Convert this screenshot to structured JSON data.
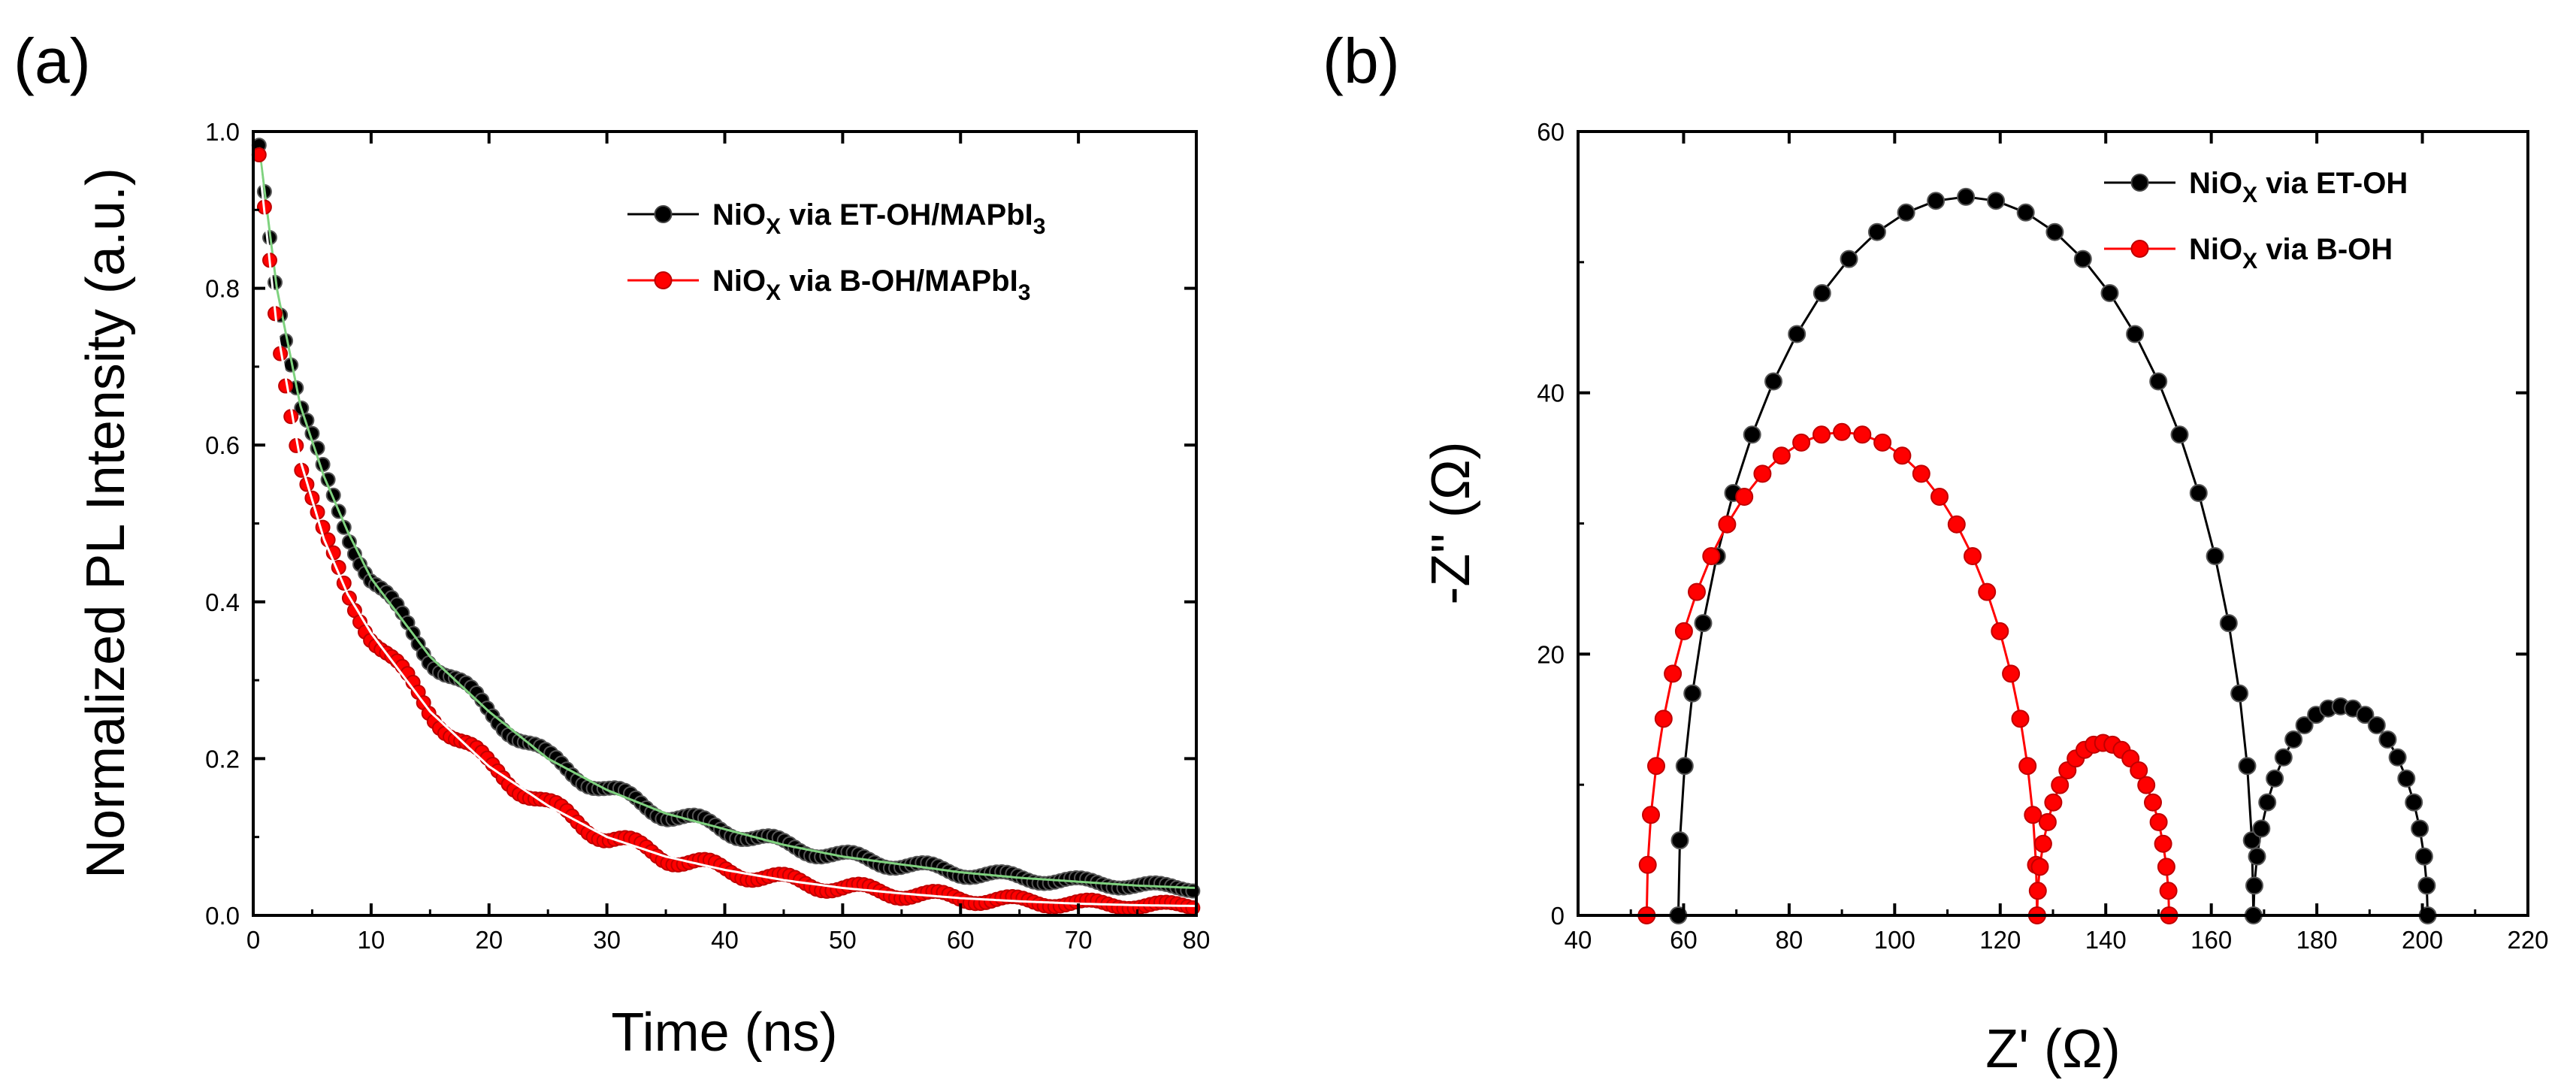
{
  "panels": [
    {
      "label": "(a)",
      "chart_data": {
        "type": "scatter",
        "xlabel": "Time (ns)",
        "ylabel": "Normalized PL Intensity (a.u.)",
        "xlim": [
          0,
          80
        ],
        "ylim": [
          0,
          1.0
        ],
        "xticks": [
          0,
          10,
          20,
          30,
          40,
          50,
          60,
          70,
          80
        ],
        "yticks": [
          0.0,
          0.2,
          0.4,
          0.6,
          0.8,
          1.0
        ],
        "xtick_labels": [
          "0",
          "10",
          "20",
          "30",
          "40",
          "50",
          "60",
          "70",
          "80"
        ],
        "ytick_labels": [
          "0.0",
          "0.2",
          "0.4",
          "0.6",
          "0.8",
          "1.0"
        ],
        "legend_position": "top-right",
        "series": [
          {
            "name": "NiOX via ET-OH/MAPbI3",
            "legend": {
              "main": "NiO",
              "sub": "X",
              "rest": " via ET-OH/MAPbI",
              "sub2": "3"
            },
            "color": "#000000",
            "fit_color": "#7fd27f",
            "x": [
              0.5,
              2,
              4,
              6,
              8,
              10,
              15,
              20,
              25,
              30,
              35,
              40,
              45,
              50,
              55,
              60,
              65,
              70,
              75,
              80
            ],
            "values": [
              0.98,
              0.8,
              0.65,
              0.56,
              0.49,
              0.43,
              0.33,
              0.26,
              0.2,
              0.16,
              0.13,
              0.11,
              0.09,
              0.075,
              0.065,
              0.055,
              0.048,
              0.043,
              0.038,
              0.035
            ]
          },
          {
            "name": "NiOX via B-OH/MAPbI3",
            "legend": {
              "main": "NiO",
              "sub": "X",
              "rest": " via B-OH/MAPbI",
              "sub2": "3"
            },
            "color": "#ff0000",
            "fit_color": "#ffffff",
            "x": [
              0.5,
              2,
              4,
              6,
              8,
              10,
              15,
              20,
              25,
              30,
              35,
              40,
              45,
              50,
              55,
              60,
              65,
              70,
              75,
              80
            ],
            "values": [
              0.96,
              0.75,
              0.58,
              0.48,
              0.41,
              0.36,
              0.26,
              0.19,
              0.14,
              0.1,
              0.075,
              0.058,
              0.045,
              0.035,
              0.028,
              0.022,
              0.018,
              0.015,
              0.013,
              0.012
            ]
          }
        ]
      }
    },
    {
      "label": "(b)",
      "chart_data": {
        "type": "line",
        "xlabel": "Z' (Ω)",
        "ylabel": "-Z'' (Ω)",
        "xlim": [
          40,
          220
        ],
        "ylim": [
          0,
          60
        ],
        "xticks": [
          40,
          60,
          80,
          100,
          120,
          140,
          160,
          180,
          200,
          220
        ],
        "yticks": [
          0,
          20,
          40,
          60
        ],
        "xtick_labels": [
          "40",
          "60",
          "80",
          "100",
          "120",
          "140",
          "160",
          "180",
          "200",
          "220"
        ],
        "ytick_labels": [
          "0",
          "20",
          "40",
          "60"
        ],
        "legend_position": "top-right",
        "series": [
          {
            "name": "NiOX via ET-OH",
            "legend": {
              "main": "NiO",
              "sub": "X",
              "rest": " via ET-OH",
              "sub2": ""
            },
            "color": "#000000",
            "arcs": [
              {
                "z_start": 59,
                "z_end": 168,
                "peak": 55
              },
              {
                "z_start": 168,
                "z_end": 201,
                "peak": 16
              }
            ]
          },
          {
            "name": "NiOX via B-OH",
            "legend": {
              "main": "NiO",
              "sub": "X",
              "rest": " via B-OH",
              "sub2": ""
            },
            "color": "#ff0000",
            "arcs": [
              {
                "z_start": 53,
                "z_end": 127,
                "peak": 37
              },
              {
                "z_start": 127,
                "z_end": 152,
                "peak": 13.2
              }
            ]
          }
        ]
      }
    }
  ]
}
